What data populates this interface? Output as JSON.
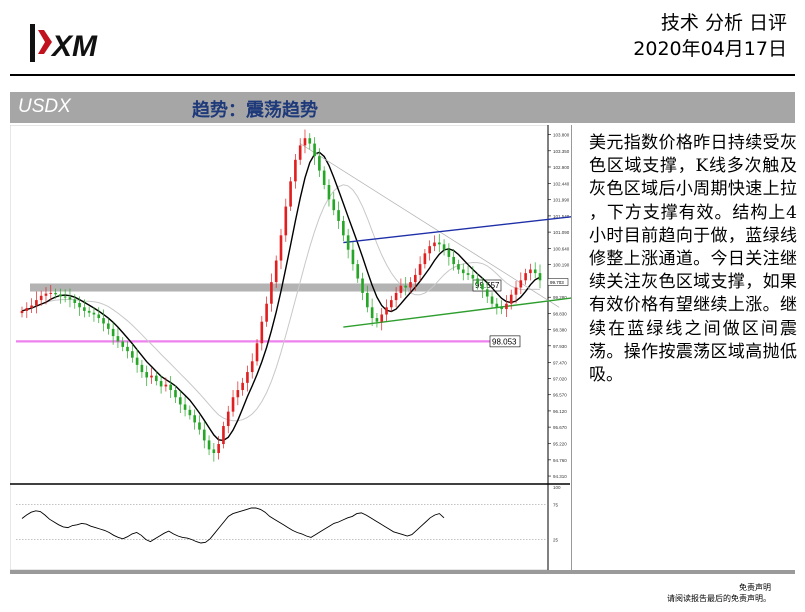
{
  "brand": {
    "logo_text": "XM"
  },
  "header": {
    "title": "技术 分析 日评",
    "date": "2020年04月17日"
  },
  "title_bar": {
    "symbol": "USDX",
    "trend": "趋势：震荡趋势"
  },
  "commentary": "美元指数价格昨日持续受灰色区域支撑，K线多次触及灰色区域后小周期快速上拉 ，下方支撑有效。结构上4小时目前趋向于做，蓝绿线修整上涨通道。今日关注继续关注灰色区域支撑，如果有效价格有望继续上涨。继续在蓝绿线之间做区间震荡。操作按震荡区域高抛低吸。",
  "footer": {
    "disclaimer_title": "免责声明",
    "disclaimer_text": "请阅读报告最后的免责声明。"
  },
  "chart_data": {
    "type": "candlestick",
    "symbol": "USDX",
    "y_ticks": [
      "103.800",
      "103.350",
      "102.900",
      "102.440",
      "101.990",
      "101.540",
      "101.090",
      "100.640",
      "100.190",
      "99.730",
      "99.280",
      "98.830",
      "98.380",
      "97.930",
      "97.470",
      "97.020",
      "96.570",
      "96.120",
      "95.670",
      "95.220",
      "94.760",
      "94.310"
    ],
    "ylim": [
      94.2,
      103.9
    ],
    "current_price_label": "99.703",
    "support_zone": {
      "label": "99.557",
      "low": 99.48,
      "high": 99.62,
      "color": "#b3b3b3"
    },
    "horizontal_level": {
      "label": "98.053",
      "value": 98.053,
      "color": "#ee82ee"
    },
    "close": [
      98.9,
      98.98,
      99.05,
      99.2,
      99.32,
      99.38,
      99.4,
      99.36,
      99.3,
      99.28,
      99.22,
      99.12,
      99.0,
      98.9,
      98.85,
      98.8,
      98.7,
      98.55,
      98.4,
      98.2,
      98.05,
      97.9,
      97.78,
      97.6,
      97.4,
      97.2,
      97.05,
      97.1,
      96.95,
      96.8,
      96.85,
      96.7,
      96.5,
      96.3,
      96.15,
      96.0,
      95.8,
      95.6,
      95.3,
      95.05,
      94.95,
      95.2,
      95.7,
      96.1,
      96.5,
      96.7,
      96.9,
      97.2,
      97.5,
      98.0,
      98.6,
      99.1,
      99.7,
      100.3,
      101.0,
      101.8,
      102.5,
      103.1,
      103.5,
      103.7,
      103.55,
      103.2,
      102.8,
      102.4,
      102.0,
      101.7,
      101.4,
      101.0,
      100.6,
      100.2,
      99.8,
      99.4,
      99.0,
      98.7,
      98.6,
      98.8,
      99.0,
      99.2,
      99.4,
      99.6,
      99.55,
      99.7,
      99.9,
      100.2,
      100.5,
      100.7,
      100.8,
      100.75,
      100.6,
      100.4,
      100.2,
      100.05,
      99.95,
      99.9,
      99.8,
      99.65,
      99.5,
      99.3,
      99.1,
      99.0,
      98.95,
      99.1,
      99.35,
      99.55,
      99.75,
      99.95,
      100.05,
      99.95,
      99.75
    ],
    "ma_fast": {
      "color": "#000000"
    },
    "ma_slow": {
      "color": "#c8c8c8"
    },
    "channel_upper": {
      "from": [
        67,
        100.8
      ],
      "to": [
        120,
        101.6
      ],
      "color": "#1f2fa8"
    },
    "channel_lower": {
      "from": [
        67,
        98.45
      ],
      "to": [
        120,
        99.35
      ],
      "color": "#2e9e2e"
    },
    "trend_line": {
      "from": [
        58,
        103.55
      ],
      "to": [
        112,
        99.0
      ],
      "color": "#b4b4b4"
    },
    "oscillator": {
      "levels": [
        "100",
        "75",
        "25"
      ],
      "values": [
        55,
        60,
        64,
        66,
        65,
        60,
        54,
        50,
        46,
        43,
        42,
        45,
        46,
        48,
        47,
        44,
        42,
        40,
        38,
        35,
        31,
        28,
        26,
        29,
        33,
        35,
        31,
        25,
        22,
        26,
        30,
        34,
        37,
        33,
        30,
        28,
        27,
        25,
        22,
        20,
        21,
        26,
        34,
        42,
        50,
        58,
        62,
        64,
        66,
        68,
        70,
        70,
        68,
        64,
        58,
        54,
        50,
        46,
        42,
        38,
        35,
        33,
        30,
        28,
        32,
        36,
        40,
        44,
        48,
        50,
        53,
        56,
        58,
        62,
        63,
        60,
        56,
        52,
        48,
        44,
        40,
        36,
        34,
        32,
        30,
        32,
        38,
        44,
        50,
        56,
        60,
        62,
        56
      ]
    }
  }
}
